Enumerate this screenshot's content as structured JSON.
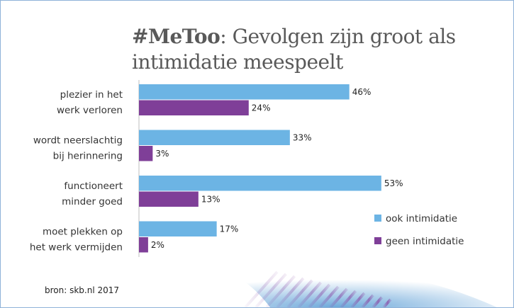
{
  "chart_data": {
    "type": "bar",
    "orientation": "horizontal",
    "title_bold": "#MeToo",
    "title_rest": ": Gevolgen zijn groot als",
    "title_line2": "intimidatie meespeelt",
    "categories": [
      [
        "plezier in het",
        "werk verloren"
      ],
      [
        "wordt neerslachtig",
        "bij herinnering"
      ],
      [
        "functioneert",
        "minder goed"
      ],
      [
        "moet plekken op",
        "het werk vermijden"
      ]
    ],
    "series": [
      {
        "name": "ook intimidatie",
        "color": "#6cb4e4",
        "values": [
          46,
          33,
          53,
          17
        ]
      },
      {
        "name": "geen intimidatie",
        "color": "#7f3f98",
        "values": [
          24,
          3,
          13,
          2
        ]
      }
    ],
    "value_suffix": "%",
    "xlim": [
      0,
      60
    ],
    "legend_position": "right",
    "source": "bron: skb.nl  2017"
  }
}
